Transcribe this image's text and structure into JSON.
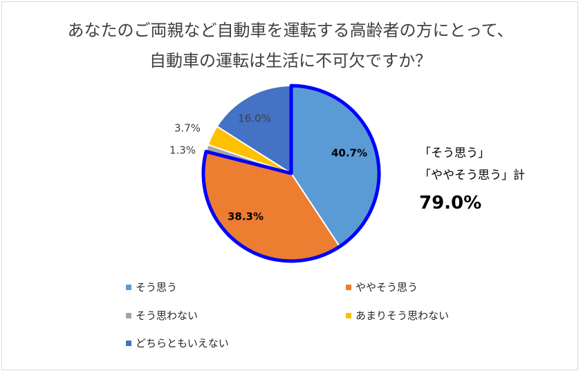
{
  "chart_data": {
    "type": "pie",
    "title_lines": [
      "あなたのご両親など自動車を運転する高齢者の方にとって、",
      "自動車の運転は生活に不可欠ですか？"
    ],
    "slices": [
      {
        "name": "そう思う",
        "value": 40.7,
        "label": "40.7%",
        "color": "#5b9bd5"
      },
      {
        "name": "ややそう思う",
        "value": 38.3,
        "label": "38.3%",
        "color": "#ed7d31"
      },
      {
        "name": "そう思わない",
        "value": 1.3,
        "label": "1.3%",
        "color": "#a5a5a5"
      },
      {
        "name": "あまりそう思わない",
        "value": 3.7,
        "label": "3.7%",
        "color": "#ffc000"
      },
      {
        "name": "どちらともいえない",
        "value": 16.0,
        "label": "16.0%",
        "color": "#4472c4"
      }
    ],
    "highlight_border_color": "#0000ff",
    "callout": {
      "line1": "「そう思う」",
      "line2": "「ややそう思う」計",
      "total": "79.0%"
    },
    "legend_placement": "bottom"
  }
}
